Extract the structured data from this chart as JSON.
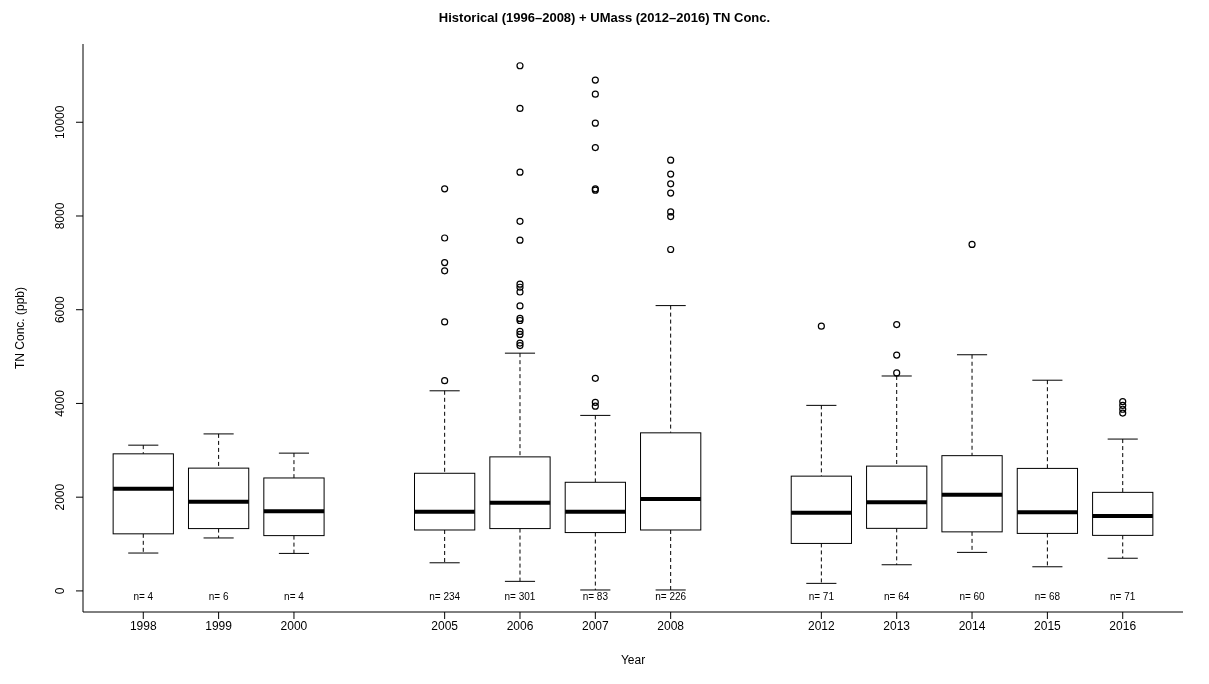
{
  "chart_data": {
    "type": "box",
    "title": "Historical (1996–2008) + UMass (2012–2016) TN Conc.",
    "xlabel": "Year",
    "ylabel": "TN Conc. (ppb)",
    "color": "#000000",
    "marker": "circle",
    "grid": false,
    "legend": false,
    "categories": [
      "1998",
      "1999",
      "2000",
      null,
      "2005",
      "2006",
      "2007",
      "2008",
      null,
      "2012",
      "2013",
      "2014",
      "2015",
      "2016"
    ],
    "ylim": [
      -450,
      11670
    ],
    "yticks": [
      0,
      2000,
      4000,
      6000,
      8000,
      10000
    ],
    "boxes": [
      {
        "low": 808,
        "q1": 1218,
        "median": 2180,
        "q3": 2925,
        "high": 3110
      },
      {
        "low": 1130,
        "q1": 1330,
        "median": 1900,
        "q3": 2620,
        "high": 3350
      },
      {
        "low": 800,
        "q1": 1180,
        "median": 1700,
        "q3": 2410,
        "high": 2940
      },
      null,
      {
        "low": 600,
        "q1": 1300,
        "median": 1690,
        "q3": 2510,
        "high": 4270,
        "outliers": [
          4485,
          5740,
          6830,
          7005,
          7530,
          8580
        ]
      },
      {
        "low": 204,
        "q1": 1330,
        "median": 1880,
        "q3": 2860,
        "high": 5073,
        "outliers": [
          5236,
          5288,
          5472,
          5536,
          5770,
          5815,
          6080,
          6378,
          6480,
          6545,
          7483,
          7886,
          8936,
          10296,
          11206
        ]
      },
      {
        "low": 20,
        "q1": 1245,
        "median": 1690,
        "q3": 2318,
        "high": 3745,
        "outliers": [
          3942,
          4024,
          4536,
          8550,
          8580,
          9460,
          9980,
          10600,
          10900
        ]
      },
      {
        "low": 20,
        "q1": 1300,
        "median": 1960,
        "q3": 3373,
        "high": 6088,
        "outliers": [
          7285,
          7987,
          8086,
          8490,
          8687,
          8895,
          9191
        ]
      },
      null,
      {
        "low": 161,
        "q1": 1013,
        "median": 1670,
        "q3": 2449,
        "high": 3959,
        "outliers": [
          5650
        ]
      },
      {
        "low": 558,
        "q1": 1335,
        "median": 1890,
        "q3": 2663,
        "high": 4586,
        "outliers": [
          4652,
          5032,
          5683
        ]
      },
      {
        "low": 822,
        "q1": 1260,
        "median": 2050,
        "q3": 2886,
        "high": 5039,
        "outliers": [
          7393
        ]
      },
      {
        "low": 515,
        "q1": 1227,
        "median": 1680,
        "q3": 2614,
        "high": 4496
      },
      {
        "low": 697,
        "q1": 1185,
        "median": 1600,
        "q3": 2103,
        "high": 3240,
        "outliers": [
          3794,
          3876,
          3959,
          4041
        ]
      }
    ],
    "annotations": [
      "n= 4",
      "n= 6",
      "n= 4",
      "n= 234",
      "n= 301",
      "n= 83",
      "n= 226",
      "n= 71",
      "n= 64",
      "n= 60",
      "n= 68",
      "n= 71"
    ]
  }
}
